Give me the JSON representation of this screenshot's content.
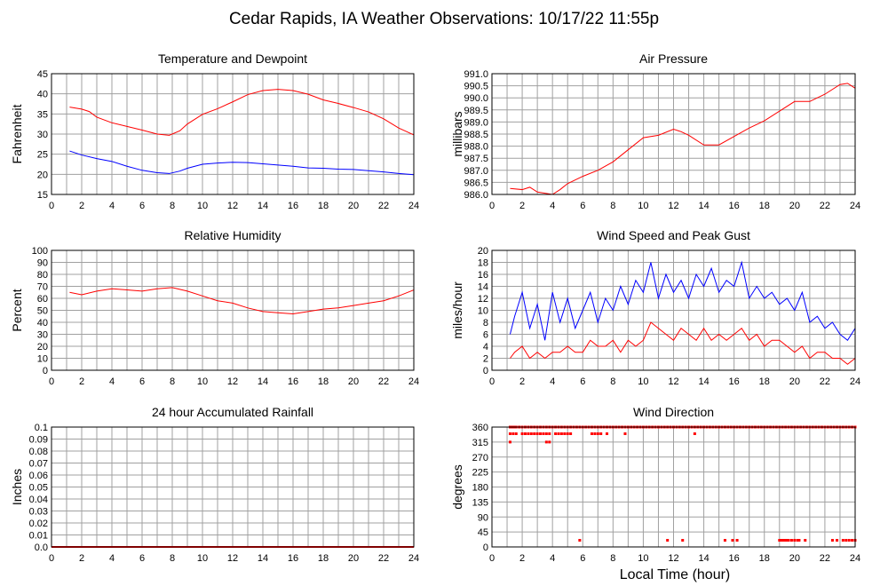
{
  "page": {
    "title": "Cedar Rapids, IA Weather Observations: 10/17/22 11:55p",
    "xlabel": "Local Time (hour)"
  },
  "colors": {
    "red": "#ff0000",
    "blue": "#0000ff",
    "grid": "#a0a0a0"
  },
  "chart_data": [
    {
      "id": "temp",
      "type": "line",
      "title": "Temperature and Dewpoint",
      "ylabel": "Fahrenheit",
      "xlim": [
        0,
        24
      ],
      "ylim": [
        15,
        45
      ],
      "xticks": [
        0,
        2,
        4,
        6,
        8,
        10,
        12,
        14,
        16,
        18,
        20,
        22,
        24
      ],
      "yticks": [
        15,
        20,
        25,
        30,
        35,
        40,
        45
      ],
      "ytick_labels": [
        "15",
        "20",
        "25",
        "30",
        "35",
        "40",
        "45"
      ],
      "grid": true,
      "series": [
        {
          "color": "#ff0000",
          "x": [
            1.2,
            2,
            2.5,
            3,
            4,
            5,
            6,
            7,
            7.8,
            8.5,
            9,
            10,
            11,
            12,
            13,
            14,
            15,
            16,
            17,
            18,
            19,
            20,
            21,
            22,
            23,
            24
          ],
          "y": [
            36.7,
            36.2,
            35.6,
            34.2,
            32.8,
            31.9,
            31.0,
            30.0,
            29.7,
            30.8,
            32.5,
            34.9,
            36.3,
            38.0,
            39.8,
            40.8,
            41.1,
            40.8,
            39.9,
            38.5,
            37.6,
            36.6,
            35.5,
            33.8,
            31.5,
            29.8
          ]
        },
        {
          "color": "#0000ff",
          "x": [
            1.2,
            2,
            3,
            4,
            5,
            6,
            7,
            7.8,
            8.5,
            9,
            10,
            11,
            12,
            13,
            14,
            15,
            16,
            17,
            18,
            19,
            20,
            21,
            22,
            23,
            24
          ],
          "y": [
            25.8,
            24.8,
            23.9,
            23.2,
            22.0,
            21.0,
            20.4,
            20.2,
            20.8,
            21.5,
            22.5,
            22.8,
            23.0,
            22.9,
            22.6,
            22.3,
            22.0,
            21.6,
            21.5,
            21.3,
            21.2,
            20.9,
            20.6,
            20.2,
            19.9
          ]
        }
      ]
    },
    {
      "id": "pressure",
      "type": "line",
      "title": "Air Pressure",
      "ylabel": "millibars",
      "xlim": [
        0,
        24
      ],
      "ylim": [
        986.0,
        991.0
      ],
      "xticks": [
        0,
        2,
        4,
        6,
        8,
        10,
        12,
        14,
        16,
        18,
        20,
        22,
        24
      ],
      "yticks": [
        986.0,
        986.5,
        987.0,
        987.5,
        988.0,
        988.5,
        989.0,
        989.5,
        990.0,
        990.5,
        991.0
      ],
      "ytick_labels": [
        "986.0",
        "986.5",
        "987.0",
        "987.5",
        "988.0",
        "988.5",
        "989.0",
        "989.5",
        "990.0",
        "990.5",
        "991.0"
      ],
      "grid": true,
      "series": [
        {
          "color": "#ff0000",
          "x": [
            1.2,
            2,
            2.5,
            3,
            3.5,
            4,
            4.5,
            5,
            6,
            7,
            8,
            9,
            10,
            11,
            12,
            12.5,
            13,
            14,
            15,
            16,
            17,
            18,
            19,
            20,
            21,
            22,
            23,
            23.5,
            24
          ],
          "y": [
            986.25,
            986.2,
            986.3,
            986.1,
            986.05,
            986.0,
            986.2,
            986.45,
            986.75,
            987.0,
            987.35,
            987.85,
            988.35,
            988.45,
            988.7,
            988.6,
            988.45,
            988.05,
            988.05,
            988.4,
            988.75,
            989.05,
            989.45,
            989.85,
            989.85,
            990.15,
            990.55,
            990.6,
            990.4
          ]
        }
      ]
    },
    {
      "id": "rh",
      "type": "line",
      "title": "Relative Humidity",
      "ylabel": "Percent",
      "xlim": [
        0,
        24
      ],
      "ylim": [
        0,
        100
      ],
      "xticks": [
        0,
        2,
        4,
        6,
        8,
        10,
        12,
        14,
        16,
        18,
        20,
        22,
        24
      ],
      "yticks": [
        0,
        10,
        20,
        30,
        40,
        50,
        60,
        70,
        80,
        90,
        100
      ],
      "ytick_labels": [
        "0",
        "10",
        "20",
        "30",
        "40",
        "50",
        "60",
        "70",
        "80",
        "90",
        "100"
      ],
      "grid": true,
      "series": [
        {
          "color": "#ff0000",
          "x": [
            1.2,
            2,
            3,
            4,
            5,
            6,
            7,
            8,
            9,
            10,
            11,
            12,
            13,
            14,
            15,
            16,
            17,
            18,
            19,
            20,
            21,
            22,
            23,
            24
          ],
          "y": [
            65,
            63,
            66,
            68,
            67,
            66,
            68,
            69,
            66,
            62,
            58,
            56,
            52,
            49,
            48,
            47,
            49,
            51,
            52,
            54,
            56,
            58,
            62,
            67
          ]
        }
      ]
    },
    {
      "id": "wind",
      "type": "line",
      "title": "Wind Speed and Peak Gust",
      "ylabel": "miles/hour",
      "xlim": [
        0,
        24
      ],
      "ylim": [
        0,
        20
      ],
      "xticks": [
        0,
        2,
        4,
        6,
        8,
        10,
        12,
        14,
        16,
        18,
        20,
        22,
        24
      ],
      "yticks": [
        0,
        2,
        4,
        6,
        8,
        10,
        12,
        14,
        16,
        18,
        20
      ],
      "ytick_labels": [
        "0",
        "2",
        "4",
        "6",
        "8",
        "10",
        "12",
        "14",
        "16",
        "18",
        "20"
      ],
      "grid": true,
      "series": [
        {
          "color": "#0000ff",
          "x": [
            1.2,
            1.5,
            2,
            2.5,
            3,
            3.5,
            4,
            4.5,
            5,
            5.5,
            6,
            6.5,
            7,
            7.5,
            8,
            8.5,
            9,
            9.5,
            10,
            10.5,
            11,
            11.5,
            12,
            12.5,
            13,
            13.5,
            14,
            14.5,
            15,
            15.5,
            16,
            16.5,
            17,
            17.5,
            18,
            18.5,
            19,
            19.5,
            20,
            20.5,
            21,
            21.5,
            22,
            22.5,
            23,
            23.5,
            24
          ],
          "y": [
            6,
            9,
            13,
            7,
            11,
            5,
            13,
            8,
            12,
            7,
            10,
            13,
            8,
            12,
            10,
            14,
            11,
            15,
            13,
            18,
            12,
            16,
            13,
            15,
            12,
            16,
            14,
            17,
            13,
            15,
            14,
            18,
            12,
            14,
            12,
            13,
            11,
            12,
            10,
            13,
            8,
            9,
            7,
            8,
            6,
            5,
            7
          ]
        },
        {
          "color": "#ff0000",
          "x": [
            1.2,
            1.5,
            2,
            2.5,
            3,
            3.5,
            4,
            4.5,
            5,
            5.5,
            6,
            6.5,
            7,
            7.5,
            8,
            8.5,
            9,
            9.5,
            10,
            10.5,
            11,
            11.5,
            12,
            12.5,
            13,
            13.5,
            14,
            14.5,
            15,
            15.5,
            16,
            16.5,
            17,
            17.5,
            18,
            18.5,
            19,
            19.5,
            20,
            20.5,
            21,
            21.5,
            22,
            22.5,
            23,
            23.5,
            24
          ],
          "y": [
            2,
            3,
            4,
            2,
            3,
            2,
            3,
            3,
            4,
            3,
            3,
            5,
            4,
            4,
            5,
            3,
            5,
            4,
            5,
            8,
            7,
            6,
            5,
            7,
            6,
            5,
            7,
            5,
            6,
            5,
            6,
            7,
            5,
            6,
            4,
            5,
            5,
            4,
            3,
            4,
            2,
            3,
            3,
            2,
            2,
            1,
            2
          ]
        }
      ]
    },
    {
      "id": "rain",
      "type": "line",
      "title": "24 hour Accumulated Rainfall",
      "ylabel": "Inches",
      "xlim": [
        0,
        24
      ],
      "ylim": [
        0,
        0.1
      ],
      "xticks": [
        0,
        2,
        4,
        6,
        8,
        10,
        12,
        14,
        16,
        18,
        20,
        22,
        24
      ],
      "yticks": [
        0,
        0.01,
        0.02,
        0.03,
        0.04,
        0.05,
        0.06,
        0.07,
        0.08,
        0.09,
        0.1
      ],
      "ytick_labels": [
        "0.0",
        "0.01",
        "0.02",
        "0.03",
        "0.04",
        "0.05",
        "0.06",
        "0.07",
        "0.08",
        "0.09",
        "0.1"
      ],
      "grid": true,
      "series": [
        {
          "color": "#ff0000",
          "x": [
            0,
            24
          ],
          "y": [
            0,
            0
          ]
        }
      ]
    },
    {
      "id": "winddir",
      "type": "scatter",
      "title": "Wind Direction",
      "ylabel": "degrees",
      "xlabel": "Local Time (hour)",
      "xlim": [
        0,
        24
      ],
      "ylim": [
        0,
        360
      ],
      "xticks": [
        0,
        2,
        4,
        6,
        8,
        10,
        12,
        14,
        16,
        18,
        20,
        22,
        24
      ],
      "yticks": [
        0,
        45,
        90,
        135,
        180,
        225,
        270,
        315,
        360
      ],
      "ytick_labels": [
        "0",
        "45",
        "90",
        "135",
        "180",
        "225",
        "270",
        "315",
        "360"
      ],
      "grid": true,
      "series": [
        {
          "color": "#ff0000",
          "x": [
            1.2,
            1.3,
            1.4,
            1.5,
            1.6,
            1.8,
            2.0,
            2.2,
            2.4,
            2.6,
            2.8,
            3.0,
            3.2,
            3.4,
            3.6,
            3.8,
            4.0,
            4.2,
            4.4,
            4.6,
            4.8,
            5.0,
            5.2,
            5.4,
            5.6,
            5.8,
            6.0,
            6.2,
            6.4,
            6.6,
            6.8,
            7.0,
            7.2,
            7.4,
            7.6,
            7.8,
            8.0,
            8.2,
            8.4,
            8.6,
            8.8,
            9.0,
            9.2,
            9.4,
            9.6,
            9.8,
            10.0,
            10.2,
            10.4,
            10.6,
            10.8,
            11.0,
            11.2,
            11.4,
            11.6,
            11.8,
            12.0,
            12.2,
            12.4,
            12.6,
            12.8,
            13.0,
            13.2,
            13.4,
            13.6,
            13.8,
            14.0,
            14.2,
            14.4,
            14.6,
            14.8,
            15.0,
            15.2,
            15.4,
            15.6,
            15.8,
            16.0,
            16.2,
            16.4,
            16.6,
            16.8,
            17.0,
            17.2,
            17.4,
            17.6,
            17.8,
            18.0,
            18.2,
            18.4,
            18.6,
            18.8,
            19.0,
            19.2,
            19.4,
            19.6,
            19.8,
            20.0,
            20.2,
            20.4,
            20.6,
            20.8,
            21.0,
            21.2,
            21.4,
            21.6,
            21.8,
            22.0,
            22.2,
            22.4,
            22.6,
            22.8,
            23.0,
            23.2,
            23.4,
            23.6,
            23.8,
            24.0,
            1.2,
            1.4,
            1.6,
            2.0,
            2.2,
            2.4,
            2.6,
            2.8,
            3.0,
            3.2,
            3.4,
            3.6,
            3.8,
            4.2,
            4.4,
            4.6,
            4.8,
            5.0,
            5.2,
            6.6,
            6.8,
            7.0,
            7.2,
            7.6,
            8.8,
            13.4,
            1.2,
            3.6,
            3.8,
            5.8,
            11.6,
            12.6,
            15.4,
            15.9,
            16.2,
            19.0,
            19.1,
            19.2,
            19.3,
            19.4,
            19.5,
            19.6,
            19.8,
            20.0,
            20.2,
            20.3,
            20.7,
            22.5,
            22.8,
            23.2,
            23.4,
            23.6,
            23.8,
            24.0
          ],
          "y": [
            360,
            360,
            360,
            360,
            360,
            360,
            360,
            360,
            360,
            360,
            360,
            360,
            360,
            360,
            360,
            360,
            360,
            360,
            360,
            360,
            360,
            360,
            360,
            360,
            360,
            360,
            360,
            360,
            360,
            360,
            360,
            360,
            360,
            360,
            360,
            360,
            360,
            360,
            360,
            360,
            360,
            360,
            360,
            360,
            360,
            360,
            360,
            360,
            360,
            360,
            360,
            360,
            360,
            360,
            360,
            360,
            360,
            360,
            360,
            360,
            360,
            360,
            360,
            360,
            360,
            360,
            360,
            360,
            360,
            360,
            360,
            360,
            360,
            360,
            360,
            360,
            360,
            360,
            360,
            360,
            360,
            360,
            360,
            360,
            360,
            360,
            360,
            360,
            360,
            360,
            360,
            360,
            360,
            360,
            360,
            360,
            360,
            360,
            360,
            360,
            360,
            360,
            360,
            360,
            360,
            360,
            360,
            360,
            360,
            360,
            360,
            360,
            360,
            360,
            360,
            360,
            360,
            340,
            340,
            340,
            340,
            340,
            340,
            340,
            340,
            340,
            340,
            340,
            340,
            340,
            340,
            340,
            340,
            340,
            340,
            340,
            340,
            340,
            340,
            340,
            340,
            340,
            340,
            315,
            315,
            315,
            20,
            20,
            20,
            20,
            20,
            20,
            20,
            20,
            20,
            20,
            20,
            20,
            20,
            20,
            20,
            20,
            20,
            20,
            20,
            20,
            20,
            20,
            20,
            20,
            20
          ]
        }
      ]
    }
  ]
}
